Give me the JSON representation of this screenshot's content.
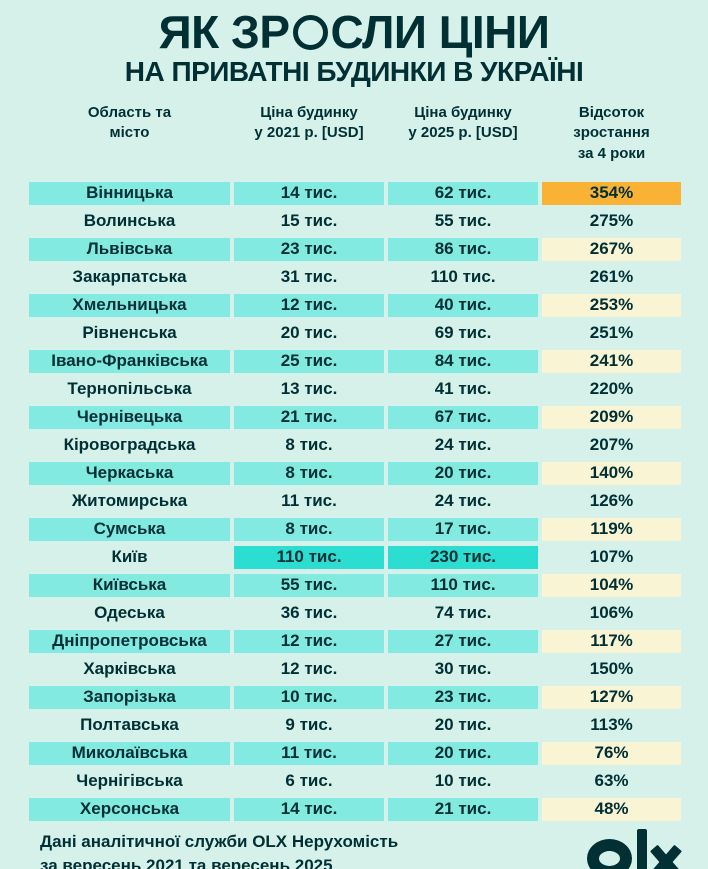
{
  "page": {
    "background_color": "#D5F1EA",
    "text_color": "#002F34",
    "row_highlight_teal": "#82EAE0",
    "kyiv_highlight_cyan": "#2CDED1",
    "growth_highlight_yellow": "#F9F4D4",
    "top_growth_highlight_orange": "#F9B233"
  },
  "header": {
    "title": "ЯК ЗРОСЛИ ЦІНИ",
    "title_before_o": "ЯК ЗР",
    "title_stylized_letter": "О",
    "title_after_o": "СЛИ ЦІНИ",
    "subtitle": "НА ПРИВАТНІ БУДИНКИ В УКРАЇНІ"
  },
  "table": {
    "column_headers": [
      {
        "label": "Область та місто",
        "lines": [
          "Область та",
          "місто"
        ]
      },
      {
        "label": "Ціна будинку у 2021 р. [USD]",
        "lines": [
          "Ціна будинку",
          "у 2021 р. [USD]"
        ]
      },
      {
        "label": "Ціна будинку у 2025 р. [USD]",
        "lines": [
          "Ціна будинку",
          "у 2025 р. [USD]"
        ]
      },
      {
        "label": "Відсоток зростання за 4 роки",
        "lines": [
          "Відсоток зростання",
          "за 4 роки"
        ]
      }
    ],
    "rows": [
      {
        "region": "Вінницька",
        "price_2021": "14 тис.",
        "price_2025": "62 тис.",
        "growth": "354%",
        "name_bg": "teal",
        "price_bg": "teal",
        "growth_bg": "orange"
      },
      {
        "region": "Волинська",
        "price_2021": "15 тис.",
        "price_2025": "55 тис.",
        "growth": "275%",
        "name_bg": "none",
        "price_bg": "none",
        "growth_bg": "none"
      },
      {
        "region": "Львівська",
        "price_2021": "23 тис.",
        "price_2025": "86 тис.",
        "growth": "267%",
        "name_bg": "teal",
        "price_bg": "teal",
        "growth_bg": "yellow"
      },
      {
        "region": "Закарпатська",
        "price_2021": "31 тис.",
        "price_2025": "110 тис.",
        "growth": "261%",
        "name_bg": "none",
        "price_bg": "none",
        "growth_bg": "none"
      },
      {
        "region": "Хмельницька",
        "price_2021": "12 тис.",
        "price_2025": "40 тис.",
        "growth": "253%",
        "name_bg": "teal",
        "price_bg": "teal",
        "growth_bg": "yellow"
      },
      {
        "region": "Рівненська",
        "price_2021": "20 тис.",
        "price_2025": "69 тис.",
        "growth": "251%",
        "name_bg": "none",
        "price_bg": "none",
        "growth_bg": "none"
      },
      {
        "region": "Івано-Франківська",
        "price_2021": "25 тис.",
        "price_2025": "84 тис.",
        "growth": "241%",
        "name_bg": "teal",
        "price_bg": "teal",
        "growth_bg": "yellow"
      },
      {
        "region": "Тернопільська",
        "price_2021": "13 тис.",
        "price_2025": "41 тис.",
        "growth": "220%",
        "name_bg": "none",
        "price_bg": "none",
        "growth_bg": "none"
      },
      {
        "region": "Чернівецька",
        "price_2021": "21 тис.",
        "price_2025": "67 тис.",
        "growth": "209%",
        "name_bg": "teal",
        "price_bg": "teal",
        "growth_bg": "yellow"
      },
      {
        "region": "Кіровоградська",
        "price_2021": "8 тис.",
        "price_2025": "24 тис.",
        "growth": "207%",
        "name_bg": "none",
        "price_bg": "none",
        "growth_bg": "none"
      },
      {
        "region": "Черкаська",
        "price_2021": "8 тис.",
        "price_2025": "20 тис.",
        "growth": "140%",
        "name_bg": "teal",
        "price_bg": "teal",
        "growth_bg": "yellow"
      },
      {
        "region": "Житомирська",
        "price_2021": "11 тис.",
        "price_2025": "24 тис.",
        "growth": "126%",
        "name_bg": "none",
        "price_bg": "none",
        "growth_bg": "none"
      },
      {
        "region": "Сумська",
        "price_2021": "8 тис.",
        "price_2025": "17 тис.",
        "growth": "119%",
        "name_bg": "teal",
        "price_bg": "teal",
        "growth_bg": "yellow"
      },
      {
        "region": "Київ",
        "price_2021": "110 тис.",
        "price_2025": "230 тис.",
        "growth": "107%",
        "name_bg": "none",
        "price_bg": "cyan",
        "growth_bg": "none"
      },
      {
        "region": "Київська",
        "price_2021": "55 тис.",
        "price_2025": "110 тис.",
        "growth": "104%",
        "name_bg": "teal",
        "price_bg": "teal",
        "growth_bg": "yellow"
      },
      {
        "region": "Одеська",
        "price_2021": "36 тис.",
        "price_2025": "74 тис.",
        "growth": "106%",
        "name_bg": "none",
        "price_bg": "none",
        "growth_bg": "none"
      },
      {
        "region": "Дніпропетровська",
        "price_2021": "12 тис.",
        "price_2025": "27 тис.",
        "growth": "117%",
        "name_bg": "teal",
        "price_bg": "teal",
        "growth_bg": "yellow"
      },
      {
        "region": "Харківська",
        "price_2021": "12 тис.",
        "price_2025": "30 тис.",
        "growth": "150%",
        "name_bg": "none",
        "price_bg": "none",
        "growth_bg": "none"
      },
      {
        "region": "Запорізька",
        "price_2021": "10 тис.",
        "price_2025": "23 тис.",
        "growth": "127%",
        "name_bg": "teal",
        "price_bg": "teal",
        "growth_bg": "yellow"
      },
      {
        "region": "Полтавська",
        "price_2021": "9 тис.",
        "price_2025": "20 тис.",
        "growth": "113%",
        "name_bg": "none",
        "price_bg": "none",
        "growth_bg": "none"
      },
      {
        "region": "Миколаївська",
        "price_2021": "11 тис.",
        "price_2025": "20 тис.",
        "growth": "76%",
        "name_bg": "teal",
        "price_bg": "teal",
        "growth_bg": "yellow"
      },
      {
        "region": "Чернігівська",
        "price_2021": "6 тис.",
        "price_2025": "10 тис.",
        "growth": "63%",
        "name_bg": "none",
        "price_bg": "none",
        "growth_bg": "none"
      },
      {
        "region": "Херсонська",
        "price_2021": "14 тис.",
        "price_2025": "21 тис.",
        "growth": "48%",
        "name_bg": "teal",
        "price_bg": "teal",
        "growth_bg": "yellow"
      }
    ]
  },
  "footer": {
    "source_line1": "Дані аналітичної служби OLX Нерухомість",
    "source_line2": "за вересень 2021 та вересень 2025",
    "logo_text": "olx"
  },
  "chart_data": {
    "type": "table",
    "title": "ЯК ЗРОСЛИ ЦІНИ НА ПРИВАТНІ БУДИНКИ В УКРАЇНІ",
    "columns": [
      "Область та місто",
      "Ціна будинку у 2021 р. [USD]",
      "Ціна будинку у 2025 р. [USD]",
      "Відсоток зростання за 4 роки"
    ],
    "units": "thousand USD (тис.)",
    "rows": [
      {
        "region": "Вінницька",
        "price_2021_k_usd": 14,
        "price_2025_k_usd": 62,
        "growth_pct": 354
      },
      {
        "region": "Волинська",
        "price_2021_k_usd": 15,
        "price_2025_k_usd": 55,
        "growth_pct": 275
      },
      {
        "region": "Львівська",
        "price_2021_k_usd": 23,
        "price_2025_k_usd": 86,
        "growth_pct": 267
      },
      {
        "region": "Закарпатська",
        "price_2021_k_usd": 31,
        "price_2025_k_usd": 110,
        "growth_pct": 261
      },
      {
        "region": "Хмельницька",
        "price_2021_k_usd": 12,
        "price_2025_k_usd": 40,
        "growth_pct": 253
      },
      {
        "region": "Рівненська",
        "price_2021_k_usd": 20,
        "price_2025_k_usd": 69,
        "growth_pct": 251
      },
      {
        "region": "Івано-Франківська",
        "price_2021_k_usd": 25,
        "price_2025_k_usd": 84,
        "growth_pct": 241
      },
      {
        "region": "Тернопільська",
        "price_2021_k_usd": 13,
        "price_2025_k_usd": 41,
        "growth_pct": 220
      },
      {
        "region": "Чернівецька",
        "price_2021_k_usd": 21,
        "price_2025_k_usd": 67,
        "growth_pct": 209
      },
      {
        "region": "Кіровоградська",
        "price_2021_k_usd": 8,
        "price_2025_k_usd": 24,
        "growth_pct": 207
      },
      {
        "region": "Черкаська",
        "price_2021_k_usd": 8,
        "price_2025_k_usd": 20,
        "growth_pct": 140
      },
      {
        "region": "Житомирська",
        "price_2021_k_usd": 11,
        "price_2025_k_usd": 24,
        "growth_pct": 126
      },
      {
        "region": "Сумська",
        "price_2021_k_usd": 8,
        "price_2025_k_usd": 17,
        "growth_pct": 119
      },
      {
        "region": "Київ",
        "price_2021_k_usd": 110,
        "price_2025_k_usd": 230,
        "growth_pct": 107
      },
      {
        "region": "Київська",
        "price_2021_k_usd": 55,
        "price_2025_k_usd": 110,
        "growth_pct": 104
      },
      {
        "region": "Одеська",
        "price_2021_k_usd": 36,
        "price_2025_k_usd": 74,
        "growth_pct": 106
      },
      {
        "region": "Дніпропетровська",
        "price_2021_k_usd": 12,
        "price_2025_k_usd": 27,
        "growth_pct": 117
      },
      {
        "region": "Харківська",
        "price_2021_k_usd": 12,
        "price_2025_k_usd": 30,
        "growth_pct": 150
      },
      {
        "region": "Запорізька",
        "price_2021_k_usd": 10,
        "price_2025_k_usd": 23,
        "growth_pct": 127
      },
      {
        "region": "Полтавська",
        "price_2021_k_usd": 9,
        "price_2025_k_usd": 20,
        "growth_pct": 113
      },
      {
        "region": "Миколаївська",
        "price_2021_k_usd": 11,
        "price_2025_k_usd": 20,
        "growth_pct": 76
      },
      {
        "region": "Чернігівська",
        "price_2021_k_usd": 6,
        "price_2025_k_usd": 10,
        "growth_pct": 63
      },
      {
        "region": "Херсонська",
        "price_2021_k_usd": 14,
        "price_2025_k_usd": 21,
        "growth_pct": 48
      }
    ]
  }
}
